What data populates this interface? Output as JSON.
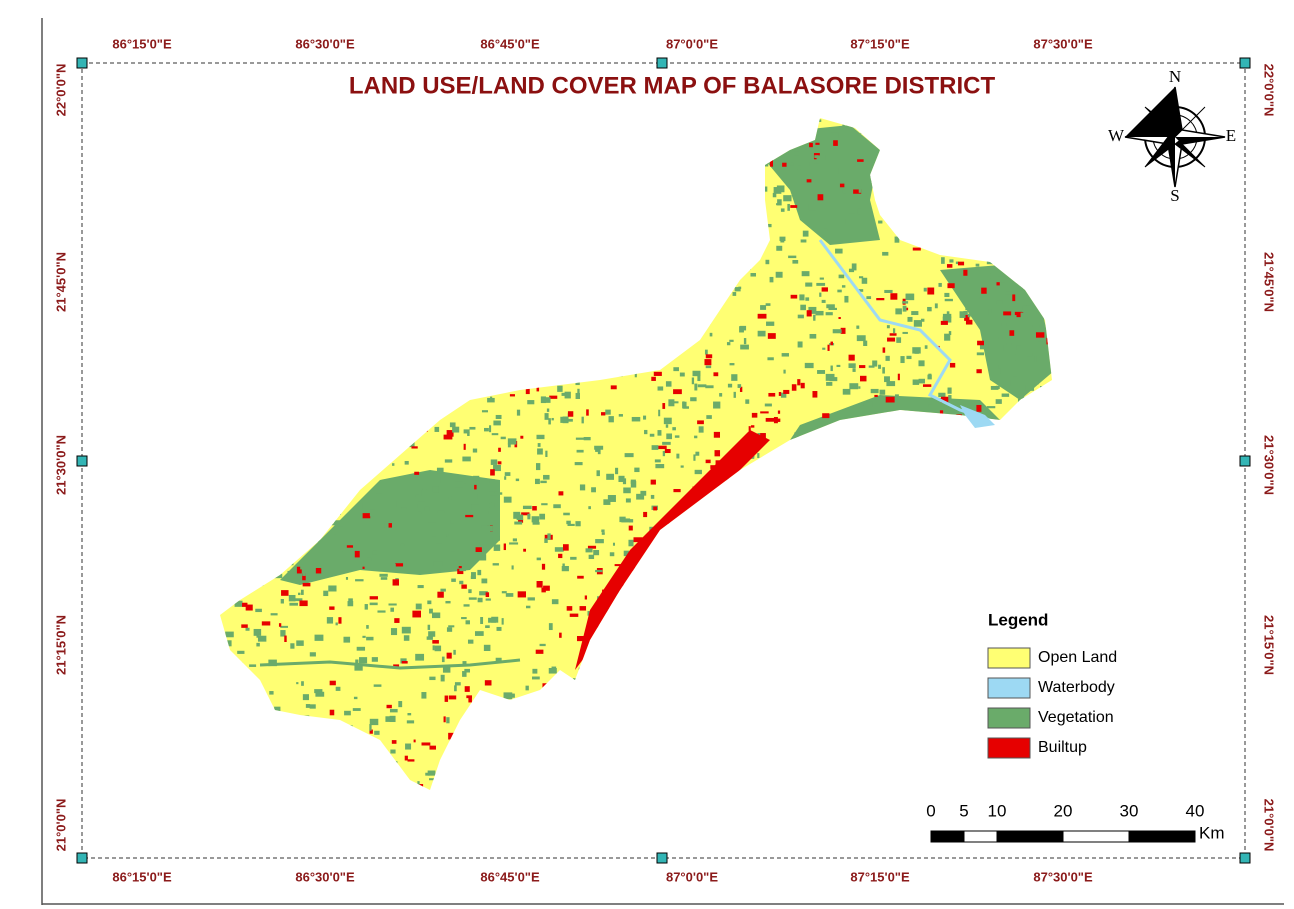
{
  "title": "LAND USE/LAND COVER MAP OF BALASORE DISTRICT",
  "graticule": {
    "top": [
      "86°15'0\"E",
      "86°30'0\"E",
      "86°45'0\"E",
      "87°0'0\"E",
      "87°15'0\"E",
      "87°30'0\"E"
    ],
    "bottom": [
      "86°15'0\"E",
      "86°30'0\"E",
      "86°45'0\"E",
      "87°0'0\"E",
      "87°15'0\"E",
      "87°30'0\"E"
    ],
    "left": [
      "22°0'0\"N",
      "21°45'0\"N",
      "21°30'0\"N",
      "21°15'0\"N",
      "21°0'0\"N"
    ],
    "right": [
      "22°0'0\"N",
      "21°45'0\"N",
      "21°30'0\"N",
      "21°15'0\"N",
      "21°0'0\"N"
    ]
  },
  "compass": {
    "north": "N",
    "south": "S",
    "east": "E",
    "west": "W"
  },
  "legend": {
    "title": "Legend",
    "items": [
      {
        "label": "Open Land",
        "color": "#ffff73"
      },
      {
        "label": "Waterbody",
        "color": "#9dd9f3"
      },
      {
        "label": "Vegetation",
        "color": "#6aab6a"
      },
      {
        "label": "Builtup",
        "color": "#e60000"
      }
    ]
  },
  "scale_bar": {
    "ticks": [
      0,
      5,
      10,
      20,
      30,
      40
    ],
    "unit": "Km"
  }
}
